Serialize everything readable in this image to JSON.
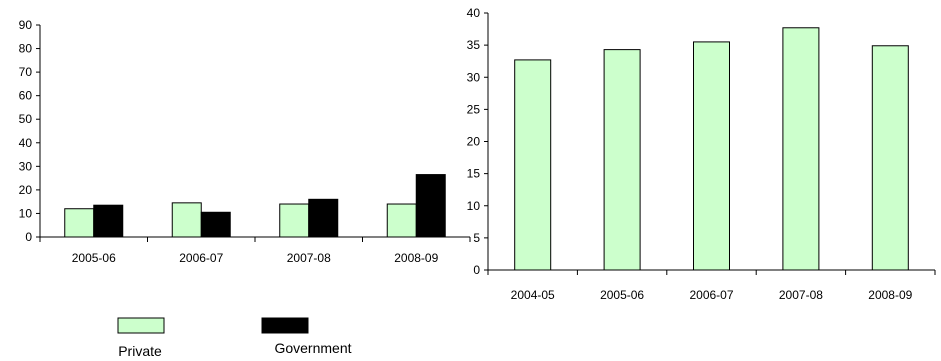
{
  "chart_data": [
    {
      "type": "bar",
      "title": "",
      "xlabel": "",
      "ylabel": "",
      "categories": [
        "2005-06",
        "2006-07",
        "2007-08",
        "2008-09"
      ],
      "series": [
        {
          "name": "Private",
          "color": "#ccffcc",
          "values": [
            12,
            14.5,
            14,
            14
          ]
        },
        {
          "name": "Government",
          "color": "#000000",
          "values": [
            13.5,
            10.5,
            16,
            26.5
          ]
        }
      ],
      "ylim": [
        0,
        90
      ],
      "yticks": [
        "0",
        "10",
        "20",
        "30",
        "40",
        "50",
        "60",
        "70",
        "80",
        "90"
      ],
      "grid": false,
      "legend": "bottom"
    },
    {
      "type": "bar",
      "title": "",
      "xlabel": "",
      "ylabel": "",
      "categories": [
        "2004-05",
        "2005-06",
        "2006-07",
        "2007-08",
        "2008-09"
      ],
      "series": [
        {
          "color": "#ccffcc",
          "values": [
            32.7,
            34.3,
            35.5,
            37.7,
            34.9
          ]
        }
      ],
      "ylim": [
        0,
        40
      ],
      "yticks": [
        "0",
        "5",
        "10",
        "15",
        "20",
        "25",
        "30",
        "35",
        "40"
      ],
      "grid": false
    }
  ]
}
